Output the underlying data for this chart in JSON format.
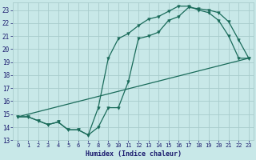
{
  "xlabel": "Humidex (Indice chaleur)",
  "bg_color": "#c8e8e8",
  "grid_color": "#a8cccc",
  "line_color": "#1a6b5a",
  "xlim": [
    -0.5,
    23.5
  ],
  "ylim": [
    13,
    23.6
  ],
  "xticks": [
    0,
    1,
    2,
    3,
    4,
    5,
    6,
    7,
    8,
    9,
    10,
    11,
    12,
    13,
    14,
    15,
    16,
    17,
    18,
    19,
    20,
    21,
    22,
    23
  ],
  "yticks": [
    13,
    14,
    15,
    16,
    17,
    18,
    19,
    20,
    21,
    22,
    23
  ],
  "line1_x": [
    0,
    1,
    2,
    3,
    4,
    5,
    6,
    7,
    8,
    9,
    10,
    11,
    12,
    13,
    14,
    15,
    16,
    17,
    18,
    19,
    20,
    21,
    22,
    23
  ],
  "line1_y": [
    14.8,
    14.8,
    14.5,
    14.2,
    14.4,
    13.8,
    13.8,
    13.4,
    15.5,
    19.3,
    20.8,
    21.2,
    21.8,
    22.3,
    22.5,
    22.9,
    23.3,
    23.3,
    23.0,
    22.8,
    22.2,
    21.0,
    19.3,
    19.3
  ],
  "line2_x": [
    0,
    1,
    2,
    3,
    4,
    5,
    6,
    7,
    8,
    9,
    10,
    11,
    12,
    13,
    14,
    15,
    16,
    17,
    18,
    19,
    20,
    21,
    22,
    23
  ],
  "line2_y": [
    14.8,
    14.8,
    14.5,
    14.2,
    14.4,
    13.8,
    13.8,
    13.4,
    14.0,
    15.5,
    15.5,
    17.5,
    20.8,
    21.0,
    21.3,
    22.2,
    22.5,
    23.2,
    23.1,
    23.0,
    22.8,
    22.1,
    20.7,
    19.3
  ],
  "line3_x": [
    0,
    23
  ],
  "line3_y": [
    14.8,
    19.3
  ]
}
